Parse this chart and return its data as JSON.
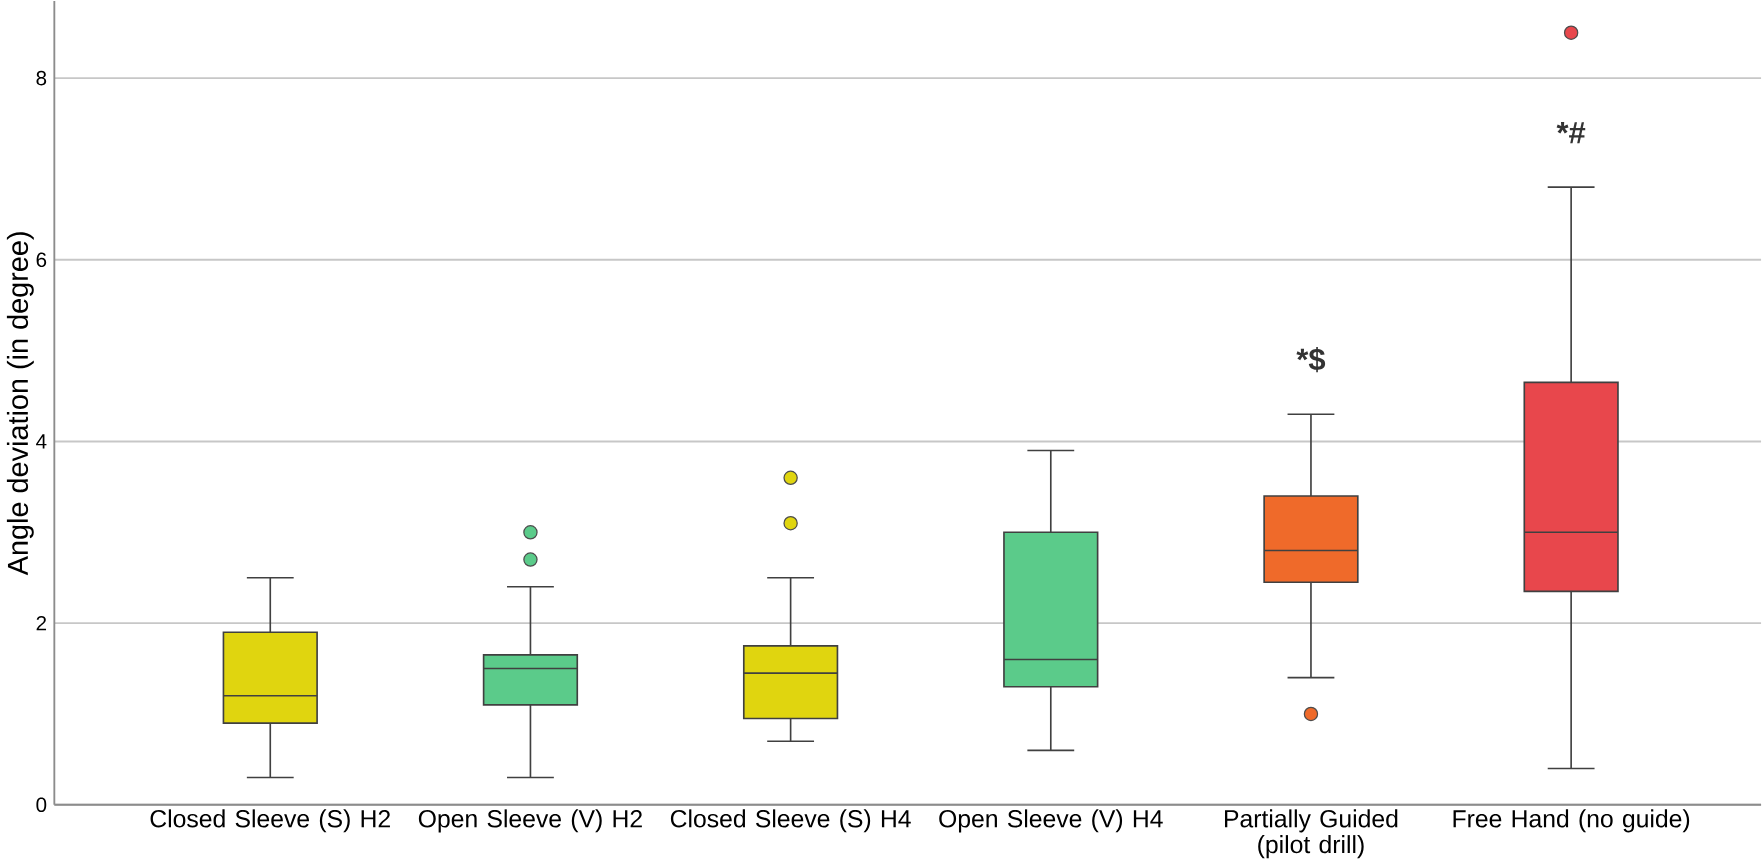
{
  "chart_data": {
    "type": "box",
    "ylabel": "Angle deviation (in degree)",
    "categories": [
      "Closed Sleeve (S) H2",
      "Open Sleeve (V) H2",
      "Closed Sleeve (S) H4",
      "Open Sleeve (V) H4",
      "Partially Guided (pilot drill)",
      "Free Hand (no guide)"
    ],
    "colors": [
      "#e0d50f",
      "#5bcb8a",
      "#e0d50f",
      "#5bcb8a",
      "#ef6a2a",
      "#e8474c"
    ],
    "boxes": [
      {
        "low": 0.3,
        "q1": 0.9,
        "median": 1.2,
        "q3": 1.9,
        "high": 2.5
      },
      {
        "low": 0.3,
        "q1": 1.1,
        "median": 1.5,
        "q3": 1.65,
        "high": 2.4,
        "outliers": [
          2.7,
          3.0
        ]
      },
      {
        "low": 0.7,
        "q1": 0.95,
        "median": 1.45,
        "q3": 1.75,
        "high": 2.5,
        "outliers": [
          3.1,
          3.6
        ]
      },
      {
        "low": 0.6,
        "q1": 1.3,
        "median": 1.6,
        "q3": 3.0,
        "high": 3.9
      },
      {
        "low": 1.4,
        "q1": 2.45,
        "median": 2.8,
        "q3": 3.4,
        "high": 4.3,
        "outliers": [
          1.0
        ]
      },
      {
        "low": 0.4,
        "q1": 2.35,
        "median": 3.0,
        "q3": 4.65,
        "high": 6.8,
        "outliers": [
          8.5
        ]
      }
    ],
    "ylim": [
      0,
      8.85
    ],
    "yticks": [
      0,
      2,
      4,
      6,
      8
    ],
    "grid": "y",
    "annotations": [
      "*$",
      "*#"
    ]
  }
}
